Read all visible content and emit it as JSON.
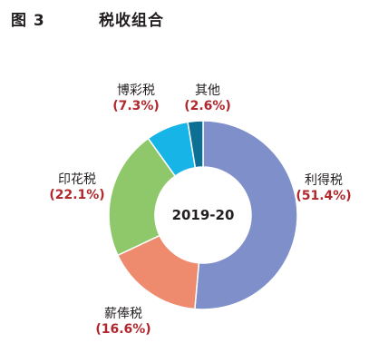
{
  "figure": {
    "number": "图 3",
    "title": "税收组合"
  },
  "colors": {
    "percent_text": "#b0282d",
    "slice_edge": "#ffffff"
  },
  "chart_data": {
    "type": "pie",
    "variant": "donut",
    "title": "税收组合",
    "center_label": "2019-20",
    "start_angle_deg": 0,
    "direction": "clockwise",
    "slices": [
      {
        "label": "利得税",
        "value": 51.4,
        "value_text": "(51.4%)",
        "color": "#7f8fca"
      },
      {
        "label": "薪俸税",
        "value": 16.6,
        "value_text": "(16.6%)",
        "color": "#ee8a6e"
      },
      {
        "label": "印花税",
        "value": 22.1,
        "value_text": "(22.1%)",
        "color": "#8ec86a"
      },
      {
        "label": "博彩税",
        "value": 7.3,
        "value_text": "(7.3%)",
        "color": "#17b4e8"
      },
      {
        "label": "其他",
        "value": 2.6,
        "value_text": "(2.6%)",
        "color": "#0c6f93"
      }
    ]
  }
}
